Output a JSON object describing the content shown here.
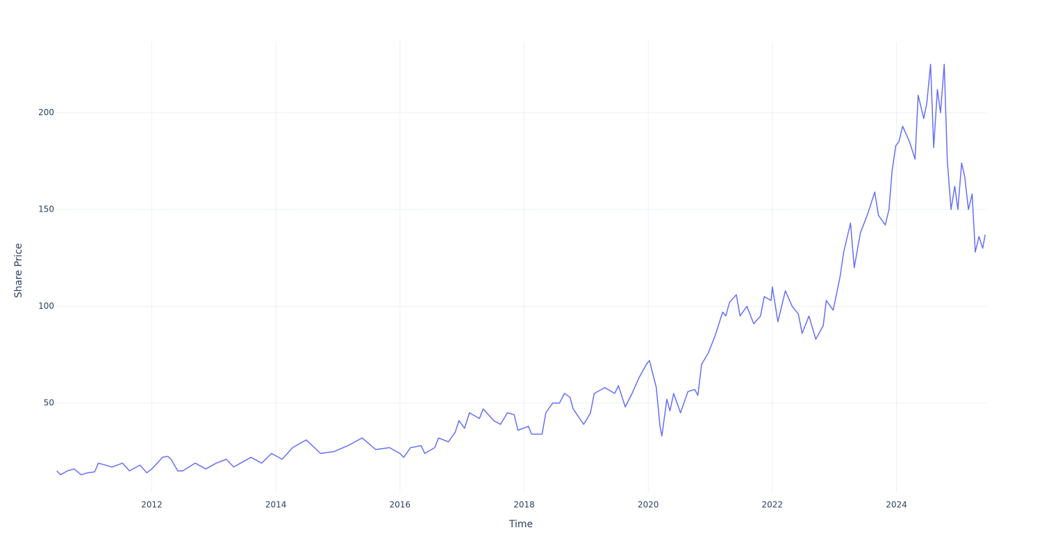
{
  "chart_data": {
    "type": "line",
    "xlabel": "Time",
    "ylabel": "Share Price",
    "x": [
      2010.47,
      2010.53,
      2010.64,
      2010.75,
      2010.86,
      2010.97,
      2011.08,
      2011.14,
      2011.36,
      2011.53,
      2011.64,
      2011.81,
      2011.92,
      2012.0,
      2012.09,
      2012.17,
      2012.26,
      2012.31,
      2012.42,
      2012.5,
      2012.65,
      2012.7,
      2012.87,
      2013.04,
      2013.2,
      2013.32,
      2013.43,
      2013.6,
      2013.77,
      2013.93,
      2014.1,
      2014.27,
      2014.49,
      2014.72,
      2014.94,
      2015.16,
      2015.39,
      2015.61,
      2015.83,
      2016.0,
      2016.06,
      2016.17,
      2016.34,
      2016.4,
      2016.56,
      2016.62,
      2016.78,
      2016.89,
      2016.95,
      2017.04,
      2017.12,
      2017.28,
      2017.34,
      2017.51,
      2017.62,
      2017.73,
      2017.84,
      2017.9,
      2018.07,
      2018.12,
      2018.29,
      2018.35,
      2018.46,
      2018.57,
      2018.65,
      2018.74,
      2018.79,
      2018.96,
      2019.07,
      2019.13,
      2019.3,
      2019.46,
      2019.52,
      2019.63,
      2019.74,
      2019.85,
      2019.97,
      2020.02,
      2020.13,
      2020.19,
      2020.22,
      2020.3,
      2020.35,
      2020.41,
      2020.52,
      2020.64,
      2020.75,
      2020.8,
      2020.86,
      2020.97,
      2021.08,
      2021.2,
      2021.25,
      2021.31,
      2021.42,
      2021.48,
      2021.59,
      2021.7,
      2021.81,
      2021.87,
      2021.98,
      2022.0,
      2022.09,
      2022.21,
      2022.32,
      2022.42,
      2022.48,
      2022.59,
      2022.7,
      2022.82,
      2022.87,
      2022.98,
      2023.09,
      2023.15,
      2023.26,
      2023.32,
      2023.42,
      2023.54,
      2023.65,
      2023.71,
      2023.82,
      2023.88,
      2023.93,
      2023.99,
      2024.04,
      2024.1,
      2024.21,
      2024.3,
      2024.35,
      2024.44,
      2024.49,
      2024.55,
      2024.6,
      2024.66,
      2024.71,
      2024.77,
      2024.82,
      2024.88,
      2024.94,
      2024.99,
      2025.05,
      2025.1,
      2025.16,
      2025.22,
      2025.27,
      2025.33,
      2025.39,
      2025.43
    ],
    "values": [
      15,
      13,
      15,
      16,
      13,
      14,
      14.5,
      19,
      17,
      19,
      15,
      18,
      14,
      16,
      19,
      22,
      22.5,
      21,
      15,
      15,
      18,
      19,
      16,
      19,
      21,
      17,
      19,
      22,
      19,
      24,
      21,
      27,
      31,
      24,
      25,
      28,
      32,
      26,
      27,
      24,
      22,
      27,
      28,
      24,
      27,
      32,
      30,
      35,
      41,
      37,
      45,
      42,
      47,
      41,
      39,
      45,
      44,
      36,
      38,
      34,
      34,
      45,
      50,
      50,
      55,
      53,
      47,
      39,
      45,
      55,
      58,
      55,
      59,
      48,
      55,
      63,
      70,
      72,
      58,
      38,
      33,
      52,
      46,
      55,
      45,
      56,
      57,
      54,
      70,
      76,
      85,
      97,
      95,
      102,
      106,
      95,
      100,
      91,
      95,
      105,
      103,
      110,
      92,
      108,
      100,
      96,
      86,
      95,
      83,
      90,
      103,
      98,
      115,
      128,
      143,
      120,
      138,
      148,
      159,
      147,
      142,
      150,
      170,
      183,
      185,
      193,
      185,
      176,
      209,
      197,
      205,
      225,
      182,
      212,
      200,
      225,
      175,
      150,
      162,
      150,
      174,
      167,
      150,
      158,
      128,
      136,
      130,
      137
    ],
    "color": "#636efa",
    "xlim": [
      2010.45,
      2025.45
    ],
    "xticks": [
      2012,
      2014,
      2016,
      2018,
      2020,
      2022,
      2024
    ],
    "ylim": [
      3.8,
      236.7
    ],
    "yticks": [
      50,
      100,
      150,
      200
    ],
    "grid": true
  }
}
